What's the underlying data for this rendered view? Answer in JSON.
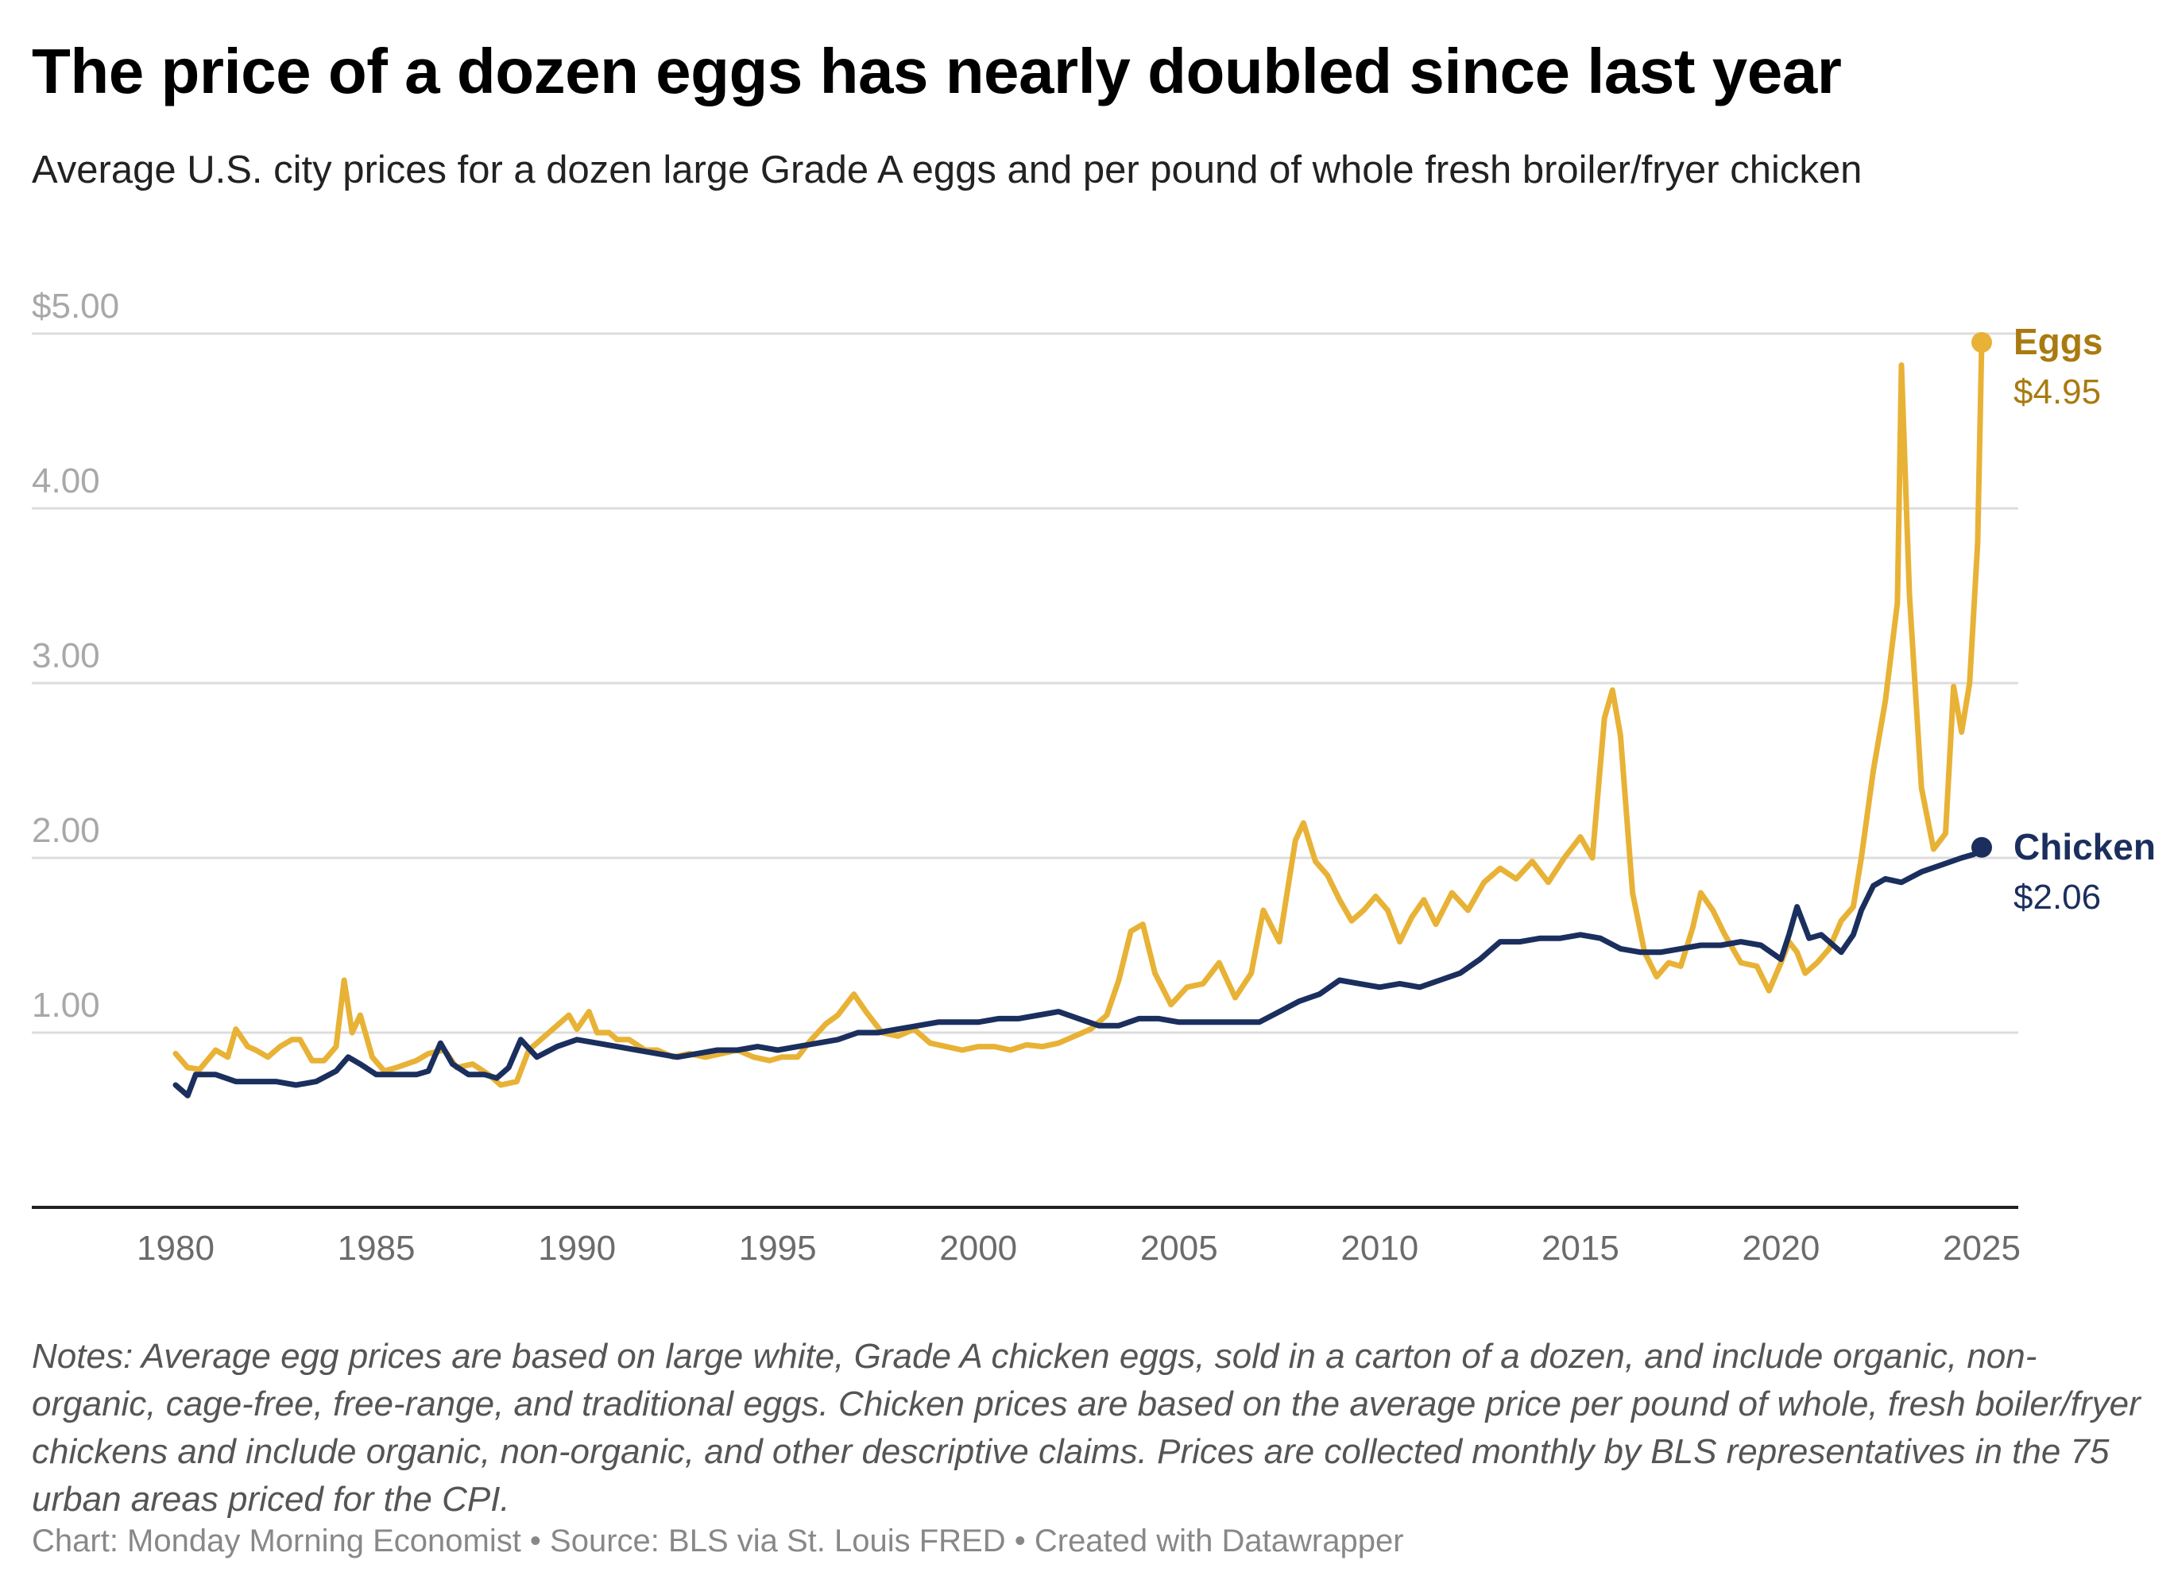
{
  "title": "The price of a dozen eggs has nearly doubled since last year",
  "subtitle": "Average U.S. city prices for a dozen large Grade A eggs and per pound of whole fresh broiler/fryer chicken",
  "notes": "Notes: Average egg prices are based on large white, Grade A chicken eggs, sold in a carton of a dozen, and include organic, non-organic, cage-free, free-range, and traditional eggs. Chicken prices are based on the average price per pound of whole, fresh boiler/fryer chickens and include organic, non-organic, and other descriptive claims. Prices are collected monthly by BLS representatives in the 75 urban areas priced for the CPI.",
  "credits": "Chart: Monday Morning Economist • Source: BLS via St. Louis FRED • Created with Datawrapper",
  "chart_data": {
    "type": "line",
    "xlim": [
      1980,
      2025
    ],
    "ylim": [
      0,
      5
    ],
    "grid": true,
    "y_ticks": [
      {
        "value": 5,
        "label": "$5.00"
      },
      {
        "value": 4,
        "label": "4.00"
      },
      {
        "value": 3,
        "label": "3.00"
      },
      {
        "value": 2,
        "label": "2.00"
      },
      {
        "value": 1,
        "label": "1.00"
      }
    ],
    "x_ticks": [
      {
        "value": 1980,
        "label": "1980"
      },
      {
        "value": 1985,
        "label": "1985"
      },
      {
        "value": 1990,
        "label": "1990"
      },
      {
        "value": 1995,
        "label": "1995"
      },
      {
        "value": 2000,
        "label": "2000"
      },
      {
        "value": 2005,
        "label": "2005"
      },
      {
        "value": 2010,
        "label": "2010"
      },
      {
        "value": 2015,
        "label": "2015"
      },
      {
        "value": 2020,
        "label": "2020"
      },
      {
        "value": 2025,
        "label": "2025"
      }
    ],
    "series": [
      {
        "name": "Eggs",
        "end_label": "$4.95",
        "color": "#E8B236",
        "label_color": "#A97A10",
        "points": [
          [
            1980.0,
            0.88
          ],
          [
            1980.3,
            0.8
          ],
          [
            1980.6,
            0.79
          ],
          [
            1981.0,
            0.9
          ],
          [
            1981.3,
            0.86
          ],
          [
            1981.5,
            1.02
          ],
          [
            1981.8,
            0.92
          ],
          [
            1982.0,
            0.9
          ],
          [
            1982.3,
            0.86
          ],
          [
            1982.6,
            0.92
          ],
          [
            1982.9,
            0.96
          ],
          [
            1983.1,
            0.96
          ],
          [
            1983.4,
            0.84
          ],
          [
            1983.7,
            0.84
          ],
          [
            1984.0,
            0.92
          ],
          [
            1984.2,
            1.3
          ],
          [
            1984.4,
            1.0
          ],
          [
            1984.6,
            1.1
          ],
          [
            1984.9,
            0.86
          ],
          [
            1985.2,
            0.78
          ],
          [
            1985.5,
            0.8
          ],
          [
            1986.0,
            0.84
          ],
          [
            1986.3,
            0.88
          ],
          [
            1986.7,
            0.9
          ],
          [
            1987.0,
            0.8
          ],
          [
            1987.4,
            0.82
          ],
          [
            1987.8,
            0.76
          ],
          [
            1988.1,
            0.7
          ],
          [
            1988.5,
            0.72
          ],
          [
            1988.8,
            0.9
          ],
          [
            1989.2,
            0.98
          ],
          [
            1989.5,
            1.04
          ],
          [
            1989.8,
            1.1
          ],
          [
            1990.0,
            1.02
          ],
          [
            1990.3,
            1.12
          ],
          [
            1990.5,
            1.0
          ],
          [
            1990.8,
            1.0
          ],
          [
            1991.0,
            0.96
          ],
          [
            1991.3,
            0.96
          ],
          [
            1991.7,
            0.9
          ],
          [
            1992.0,
            0.9
          ],
          [
            1992.4,
            0.86
          ],
          [
            1992.8,
            0.88
          ],
          [
            1993.2,
            0.86
          ],
          [
            1993.6,
            0.88
          ],
          [
            1994.0,
            0.9
          ],
          [
            1994.4,
            0.86
          ],
          [
            1994.8,
            0.84
          ],
          [
            1995.1,
            0.86
          ],
          [
            1995.5,
            0.86
          ],
          [
            1995.8,
            0.95
          ],
          [
            1996.2,
            1.05
          ],
          [
            1996.5,
            1.1
          ],
          [
            1996.9,
            1.22
          ],
          [
            1997.2,
            1.12
          ],
          [
            1997.6,
            1.0
          ],
          [
            1998.0,
            0.98
          ],
          [
            1998.4,
            1.02
          ],
          [
            1998.8,
            0.94
          ],
          [
            1999.2,
            0.92
          ],
          [
            1999.6,
            0.9
          ],
          [
            2000.0,
            0.92
          ],
          [
            2000.4,
            0.92
          ],
          [
            2000.8,
            0.9
          ],
          [
            2001.2,
            0.93
          ],
          [
            2001.6,
            0.92
          ],
          [
            2002.0,
            0.94
          ],
          [
            2002.4,
            0.98
          ],
          [
            2002.8,
            1.02
          ],
          [
            2003.2,
            1.1
          ],
          [
            2003.5,
            1.3
          ],
          [
            2003.8,
            1.58
          ],
          [
            2004.1,
            1.62
          ],
          [
            2004.4,
            1.34
          ],
          [
            2004.8,
            1.16
          ],
          [
            2005.2,
            1.26
          ],
          [
            2005.6,
            1.28
          ],
          [
            2006.0,
            1.4
          ],
          [
            2006.4,
            1.2
          ],
          [
            2006.8,
            1.34
          ],
          [
            2007.1,
            1.7
          ],
          [
            2007.5,
            1.52
          ],
          [
            2007.9,
            2.1
          ],
          [
            2008.1,
            2.2
          ],
          [
            2008.4,
            1.98
          ],
          [
            2008.7,
            1.9
          ],
          [
            2009.0,
            1.76
          ],
          [
            2009.3,
            1.64
          ],
          [
            2009.6,
            1.7
          ],
          [
            2009.9,
            1.78
          ],
          [
            2010.2,
            1.7
          ],
          [
            2010.5,
            1.52
          ],
          [
            2010.8,
            1.66
          ],
          [
            2011.1,
            1.76
          ],
          [
            2011.4,
            1.62
          ],
          [
            2011.8,
            1.8
          ],
          [
            2012.2,
            1.7
          ],
          [
            2012.6,
            1.86
          ],
          [
            2013.0,
            1.94
          ],
          [
            2013.4,
            1.88
          ],
          [
            2013.8,
            1.98
          ],
          [
            2014.2,
            1.86
          ],
          [
            2014.6,
            2.0
          ],
          [
            2015.0,
            2.12
          ],
          [
            2015.3,
            2.0
          ],
          [
            2015.6,
            2.8
          ],
          [
            2015.8,
            2.96
          ],
          [
            2016.0,
            2.7
          ],
          [
            2016.3,
            1.8
          ],
          [
            2016.6,
            1.46
          ],
          [
            2016.9,
            1.32
          ],
          [
            2017.2,
            1.4
          ],
          [
            2017.5,
            1.38
          ],
          [
            2017.8,
            1.6
          ],
          [
            2018.0,
            1.8
          ],
          [
            2018.3,
            1.7
          ],
          [
            2018.6,
            1.56
          ],
          [
            2019.0,
            1.4
          ],
          [
            2019.4,
            1.38
          ],
          [
            2019.7,
            1.24
          ],
          [
            2020.0,
            1.4
          ],
          [
            2020.2,
            1.52
          ],
          [
            2020.4,
            1.46
          ],
          [
            2020.6,
            1.34
          ],
          [
            2020.9,
            1.4
          ],
          [
            2021.2,
            1.48
          ],
          [
            2021.5,
            1.64
          ],
          [
            2021.8,
            1.72
          ],
          [
            2022.0,
            2.0
          ],
          [
            2022.3,
            2.5
          ],
          [
            2022.6,
            2.9
          ],
          [
            2022.9,
            3.46
          ],
          [
            2023.0,
            4.82
          ],
          [
            2023.2,
            3.5
          ],
          [
            2023.5,
            2.4
          ],
          [
            2023.8,
            2.05
          ],
          [
            2024.1,
            2.14
          ],
          [
            2024.3,
            2.98
          ],
          [
            2024.5,
            2.72
          ],
          [
            2024.7,
            3.0
          ],
          [
            2024.9,
            3.8
          ],
          [
            2025.0,
            4.95
          ]
        ]
      },
      {
        "name": "Chicken",
        "end_label": "$2.06",
        "color": "#1B2F5E",
        "label_color": "#1B2F5E",
        "points": [
          [
            1980.0,
            0.7
          ],
          [
            1980.3,
            0.64
          ],
          [
            1980.5,
            0.76
          ],
          [
            1981.0,
            0.76
          ],
          [
            1981.5,
            0.72
          ],
          [
            1982.0,
            0.72
          ],
          [
            1982.5,
            0.72
          ],
          [
            1983.0,
            0.7
          ],
          [
            1983.5,
            0.72
          ],
          [
            1984.0,
            0.78
          ],
          [
            1984.3,
            0.86
          ],
          [
            1984.6,
            0.82
          ],
          [
            1985.0,
            0.76
          ],
          [
            1985.5,
            0.76
          ],
          [
            1986.0,
            0.76
          ],
          [
            1986.3,
            0.78
          ],
          [
            1986.6,
            0.94
          ],
          [
            1986.9,
            0.82
          ],
          [
            1987.3,
            0.76
          ],
          [
            1987.7,
            0.76
          ],
          [
            1988.0,
            0.74
          ],
          [
            1988.3,
            0.8
          ],
          [
            1988.6,
            0.96
          ],
          [
            1989.0,
            0.86
          ],
          [
            1989.5,
            0.92
          ],
          [
            1990.0,
            0.96
          ],
          [
            1990.5,
            0.94
          ],
          [
            1991.0,
            0.92
          ],
          [
            1991.5,
            0.9
          ],
          [
            1992.0,
            0.88
          ],
          [
            1992.5,
            0.86
          ],
          [
            1993.0,
            0.88
          ],
          [
            1993.5,
            0.9
          ],
          [
            1994.0,
            0.9
          ],
          [
            1994.5,
            0.92
          ],
          [
            1995.0,
            0.9
          ],
          [
            1995.5,
            0.92
          ],
          [
            1996.0,
            0.94
          ],
          [
            1996.5,
            0.96
          ],
          [
            1997.0,
            1.0
          ],
          [
            1997.5,
            1.0
          ],
          [
            1998.0,
            1.02
          ],
          [
            1998.5,
            1.04
          ],
          [
            1999.0,
            1.06
          ],
          [
            1999.5,
            1.06
          ],
          [
            2000.0,
            1.06
          ],
          [
            2000.5,
            1.08
          ],
          [
            2001.0,
            1.08
          ],
          [
            2001.5,
            1.1
          ],
          [
            2002.0,
            1.12
          ],
          [
            2002.5,
            1.08
          ],
          [
            2003.0,
            1.04
          ],
          [
            2003.5,
            1.04
          ],
          [
            2004.0,
            1.08
          ],
          [
            2004.5,
            1.08
          ],
          [
            2005.0,
            1.06
          ],
          [
            2005.5,
            1.06
          ],
          [
            2006.0,
            1.06
          ],
          [
            2006.5,
            1.06
          ],
          [
            2007.0,
            1.06
          ],
          [
            2007.5,
            1.12
          ],
          [
            2008.0,
            1.18
          ],
          [
            2008.5,
            1.22
          ],
          [
            2009.0,
            1.3
          ],
          [
            2009.5,
            1.28
          ],
          [
            2010.0,
            1.26
          ],
          [
            2010.5,
            1.28
          ],
          [
            2011.0,
            1.26
          ],
          [
            2011.5,
            1.3
          ],
          [
            2012.0,
            1.34
          ],
          [
            2012.5,
            1.42
          ],
          [
            2013.0,
            1.52
          ],
          [
            2013.5,
            1.52
          ],
          [
            2014.0,
            1.54
          ],
          [
            2014.5,
            1.54
          ],
          [
            2015.0,
            1.56
          ],
          [
            2015.5,
            1.54
          ],
          [
            2016.0,
            1.48
          ],
          [
            2016.5,
            1.46
          ],
          [
            2017.0,
            1.46
          ],
          [
            2017.5,
            1.48
          ],
          [
            2018.0,
            1.5
          ],
          [
            2018.5,
            1.5
          ],
          [
            2019.0,
            1.52
          ],
          [
            2019.5,
            1.5
          ],
          [
            2020.0,
            1.42
          ],
          [
            2020.2,
            1.56
          ],
          [
            2020.4,
            1.72
          ],
          [
            2020.7,
            1.54
          ],
          [
            2021.0,
            1.56
          ],
          [
            2021.5,
            1.46
          ],
          [
            2021.8,
            1.56
          ],
          [
            2022.0,
            1.7
          ],
          [
            2022.3,
            1.84
          ],
          [
            2022.6,
            1.88
          ],
          [
            2023.0,
            1.86
          ],
          [
            2023.5,
            1.92
          ],
          [
            2024.0,
            1.96
          ],
          [
            2024.5,
            2.0
          ],
          [
            2024.8,
            2.02
          ],
          [
            2025.0,
            2.06
          ]
        ]
      }
    ]
  }
}
